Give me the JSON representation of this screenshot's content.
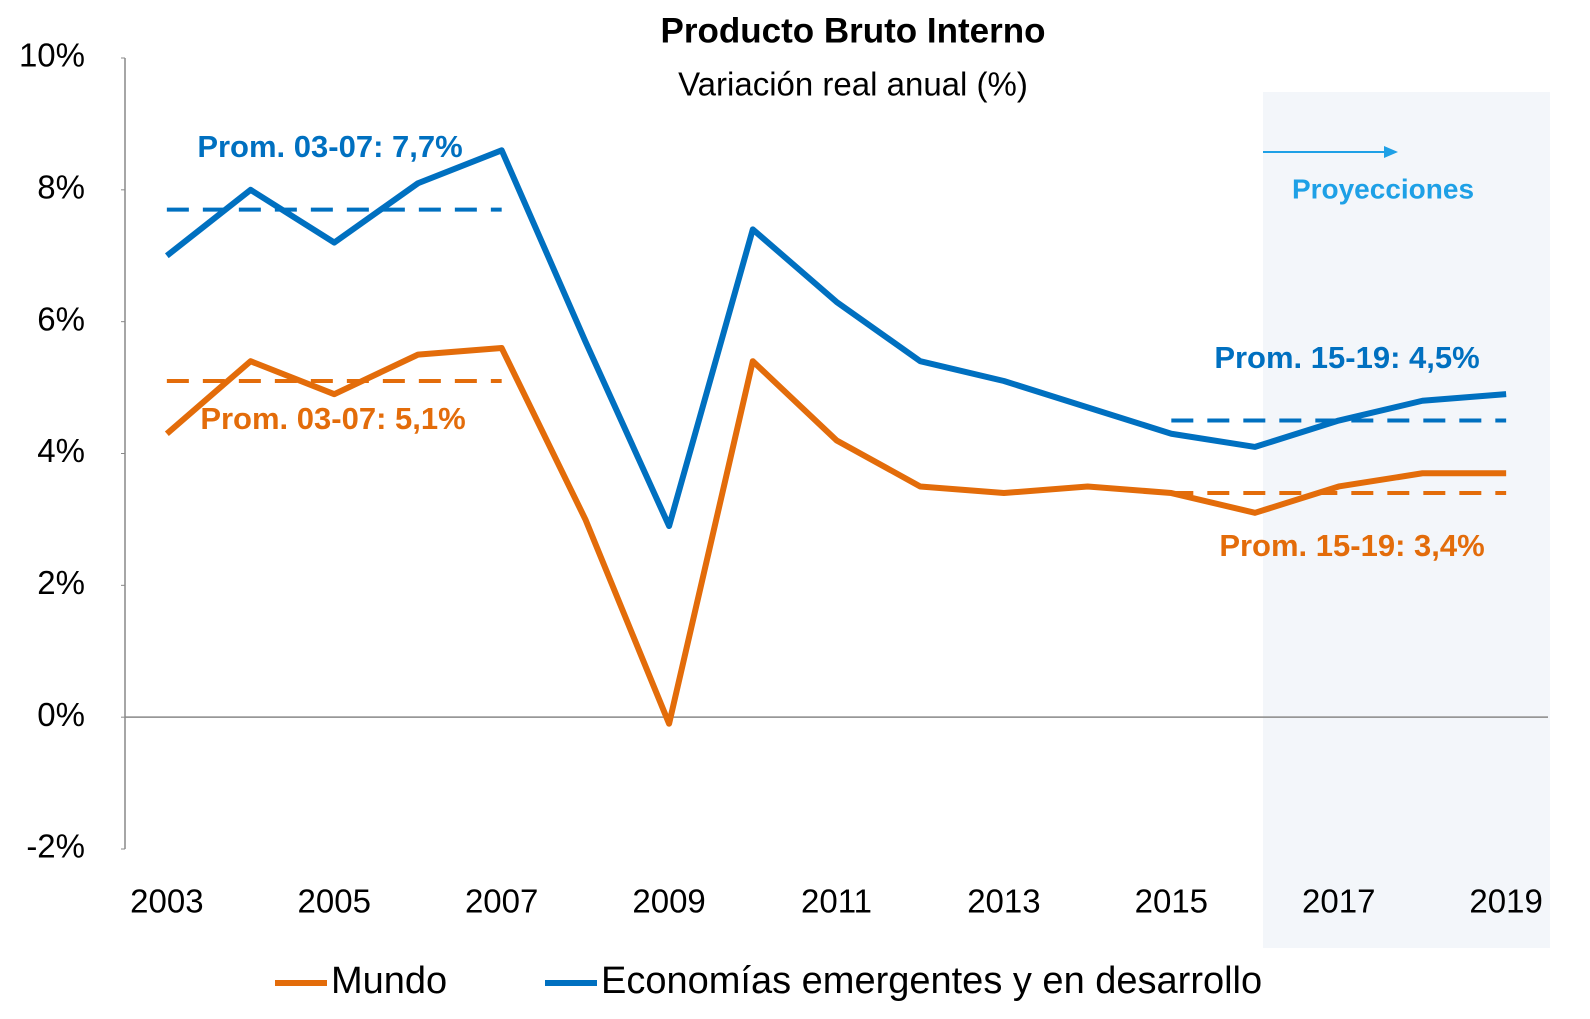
{
  "chart_data": {
    "type": "line",
    "title": "Producto Bruto Interno",
    "subtitle": "Variación real anual (%)",
    "x": [
      2003,
      2004,
      2005,
      2006,
      2007,
      2008,
      2009,
      2010,
      2011,
      2012,
      2013,
      2014,
      2015,
      2016,
      2017,
      2018,
      2019
    ],
    "xlim": [
      2002.5,
      2019.5
    ],
    "xticks": [
      2003,
      2005,
      2007,
      2009,
      2011,
      2013,
      2015,
      2017,
      2019
    ],
    "ylim": [
      -2,
      10
    ],
    "yticks": [
      {
        "value": -2,
        "label": "-2%"
      },
      {
        "value": 0,
        "label": "0%"
      },
      {
        "value": 2,
        "label": "2%"
      },
      {
        "value": 4,
        "label": "4%"
      },
      {
        "value": 6,
        "label": "6%"
      },
      {
        "value": 8,
        "label": "8%"
      },
      {
        "value": 10,
        "label": "10%"
      }
    ],
    "series": [
      {
        "name": "Mundo",
        "color": "#e36c0a",
        "values": [
          4.3,
          5.4,
          4.9,
          5.5,
          5.6,
          3.0,
          -0.1,
          5.4,
          4.2,
          3.5,
          3.4,
          3.5,
          3.4,
          3.1,
          3.5,
          3.7,
          3.7
        ]
      },
      {
        "name": "Economías emergentes y en desarrollo",
        "color": "#0070c0",
        "values": [
          7.0,
          8.0,
          7.2,
          8.1,
          8.6,
          5.7,
          2.9,
          7.4,
          6.3,
          5.4,
          5.1,
          4.7,
          4.3,
          4.1,
          4.5,
          4.8,
          4.9
        ]
      }
    ],
    "averages": [
      {
        "label": "Prom. 03-07: 7,7%",
        "value": 7.7,
        "x": [
          2003,
          2007
        ],
        "color": "#0070c0"
      },
      {
        "label": "Prom. 03-07: 5,1%",
        "value": 5.1,
        "x": [
          2003,
          2007
        ],
        "color": "#e36c0a"
      },
      {
        "label": "Prom. 15-19: 4,5%",
        "value": 4.5,
        "x": [
          2015,
          2019
        ],
        "color": "#0070c0"
      },
      {
        "label": "Prom. 15-19: 3,4%",
        "value": 3.4,
        "x": [
          2015,
          2019
        ],
        "color": "#e36c0a"
      }
    ],
    "projection_label": "Proyecciones"
  }
}
